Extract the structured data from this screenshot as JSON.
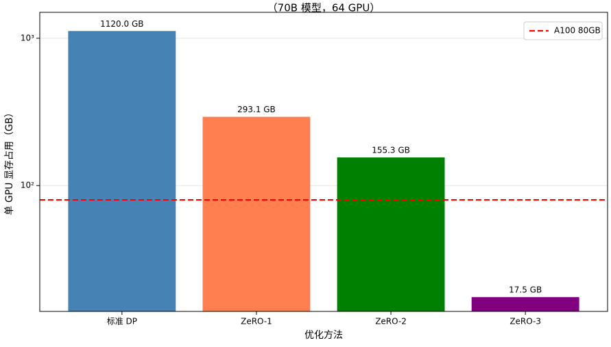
{
  "chart_data": {
    "type": "bar",
    "title": "（70B 模型，64 GPU）",
    "x_label": "优化方法",
    "y_label": "单 GPU 显存占用（GB）",
    "categories": [
      "标准 DP",
      "ZeRO-1",
      "ZeRO-2",
      "ZeRO-3"
    ],
    "values": [
      1120.0,
      293.1,
      155.3,
      17.5
    ],
    "value_labels": [
      "1120.0 GB",
      "293.1 GB",
      "155.3 GB",
      "17.5 GB"
    ],
    "colors": [
      "#4682b4",
      "#ff7f50",
      "#008000",
      "#800080"
    ],
    "y_scale": "log",
    "ylim": [
      14,
      1500
    ],
    "yticks": [
      {
        "value": 100,
        "label": "10²"
      },
      {
        "value": 1000,
        "label": "10³"
      }
    ],
    "grid": true,
    "reference_lines": [
      {
        "name": "A100 80GB",
        "value": 80,
        "color": "#ff0000"
      }
    ],
    "legend": "upper right"
  }
}
